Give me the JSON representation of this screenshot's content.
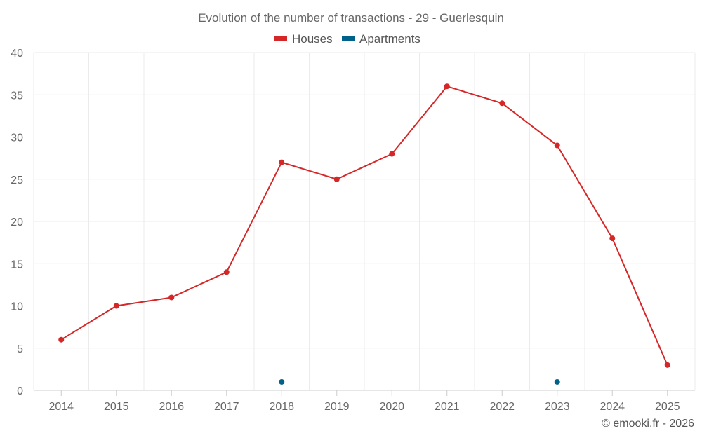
{
  "chart_data": {
    "type": "line",
    "title": "Evolution of the number of transactions - 29 - Guerlesquin",
    "xlabel": "",
    "ylabel": "",
    "categories": [
      "2014",
      "2015",
      "2016",
      "2017",
      "2018",
      "2019",
      "2020",
      "2021",
      "2022",
      "2023",
      "2024",
      "2025"
    ],
    "ylim": [
      0,
      40
    ],
    "yticks": [
      "0",
      "5",
      "10",
      "15",
      "20",
      "25",
      "30",
      "35",
      "40"
    ],
    "grid": true,
    "legend_position": "top-center",
    "series": [
      {
        "name": "Houses",
        "color": "#d62728",
        "values": [
          6,
          10,
          11,
          14,
          27,
          25,
          28,
          36,
          34,
          29,
          18,
          3
        ]
      },
      {
        "name": "Apartments",
        "color": "#00628b",
        "values": [
          null,
          null,
          null,
          null,
          1,
          null,
          null,
          null,
          null,
          1,
          null,
          null
        ]
      }
    ]
  },
  "credit": "© emooki.fr - 2026"
}
